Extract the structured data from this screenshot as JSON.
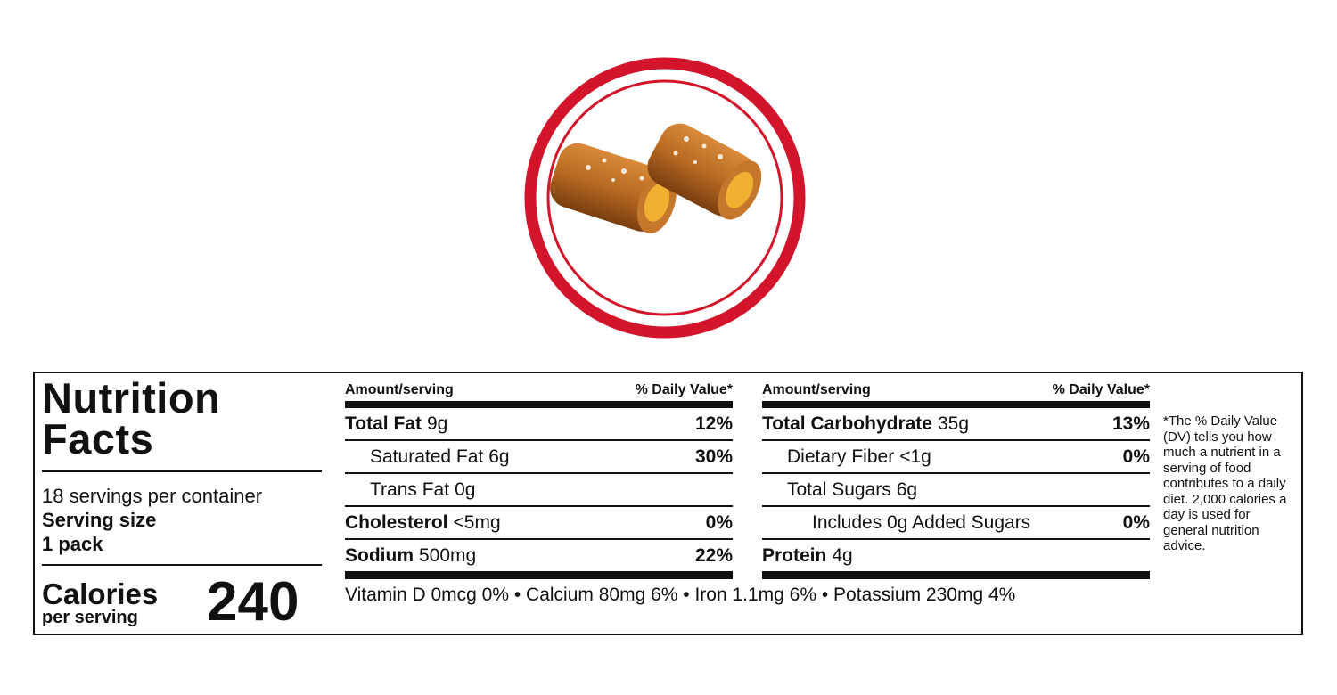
{
  "label": {
    "title": "Nutrition Facts",
    "servings": "18 servings per container",
    "serving_size_label": "Serving size",
    "serving_size": "1 pack",
    "calories_label": "Calories",
    "calories_sub": "per serving",
    "calories": 240,
    "columns": [
      {
        "header_amount": "Amount/serving",
        "header_dv": "% Daily Value*",
        "rows": [
          {
            "name": "Total Fat",
            "amount": "9g",
            "dv": "12%",
            "indent": 0
          },
          {
            "name": "Saturated Fat",
            "amount": "6g",
            "dv": "30%",
            "indent": 1
          },
          {
            "name": "Trans Fat",
            "amount": "0g",
            "indent": 1
          },
          {
            "name": "Cholesterol",
            "amount": "<5mg",
            "dv": "0%",
            "indent": 0
          },
          {
            "name": "Sodium",
            "amount": "500mg",
            "dv": "22%",
            "indent": 0
          }
        ]
      },
      {
        "header_amount": "Amount/serving",
        "header_dv": "% Daily Value*",
        "rows": [
          {
            "name": "Total Carbohydrate",
            "amount": "35g",
            "dv": "13%",
            "indent": 0
          },
          {
            "name": "Dietary Fiber",
            "amount": "<1g",
            "dv": "0%",
            "indent": 1
          },
          {
            "name": "Total Sugars",
            "amount": "6g",
            "indent": 1
          },
          {
            "name": "Includes 0g Added Sugars",
            "dv": "0%",
            "indent": 2
          },
          {
            "name": "Protein",
            "amount": "4g",
            "indent": 0
          }
        ]
      }
    ],
    "vitamins": "Vitamin D 0mcg 0% • Calcium 80mg 6% • Iron 1.1mg 6% • Potassium 230mg 4%",
    "footnote": "*The % Daily Value (DV) tells you how much a nutrient in a serving of food contributes to a daily diet. 2,000 calories a day is used for general nutrition advice."
  }
}
